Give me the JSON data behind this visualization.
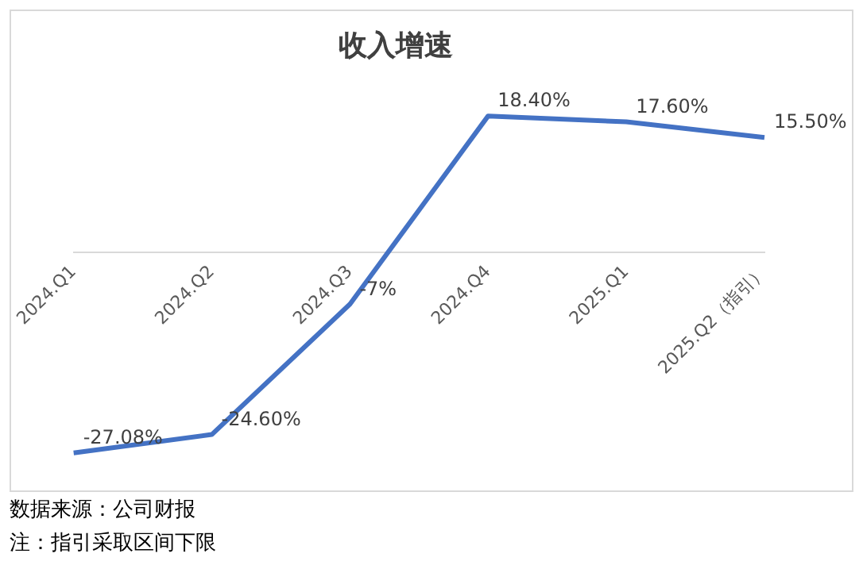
{
  "chart_data": {
    "type": "line",
    "title": "收入增速",
    "categories": [
      "2024.Q1",
      "2024.Q2",
      "2024.Q3",
      "2024.Q4",
      "2025.Q1",
      "2025.Q2（指引）"
    ],
    "series": [
      {
        "color": "#4472c4",
        "values": [
          -27.08,
          -24.6,
          -7,
          18.4,
          17.6,
          15.5
        ],
        "value_labels": [
          "-27.08%",
          "-24.60%",
          "-7%",
          "18.40%",
          "17.60%",
          "15.50%"
        ]
      }
    ],
    "tick_labels": "x",
    "grid": false,
    "legend": false,
    "marker": "none",
    "annotations": [
      "数据来源：公司财报",
      "注：指引采取区间下限"
    ]
  }
}
